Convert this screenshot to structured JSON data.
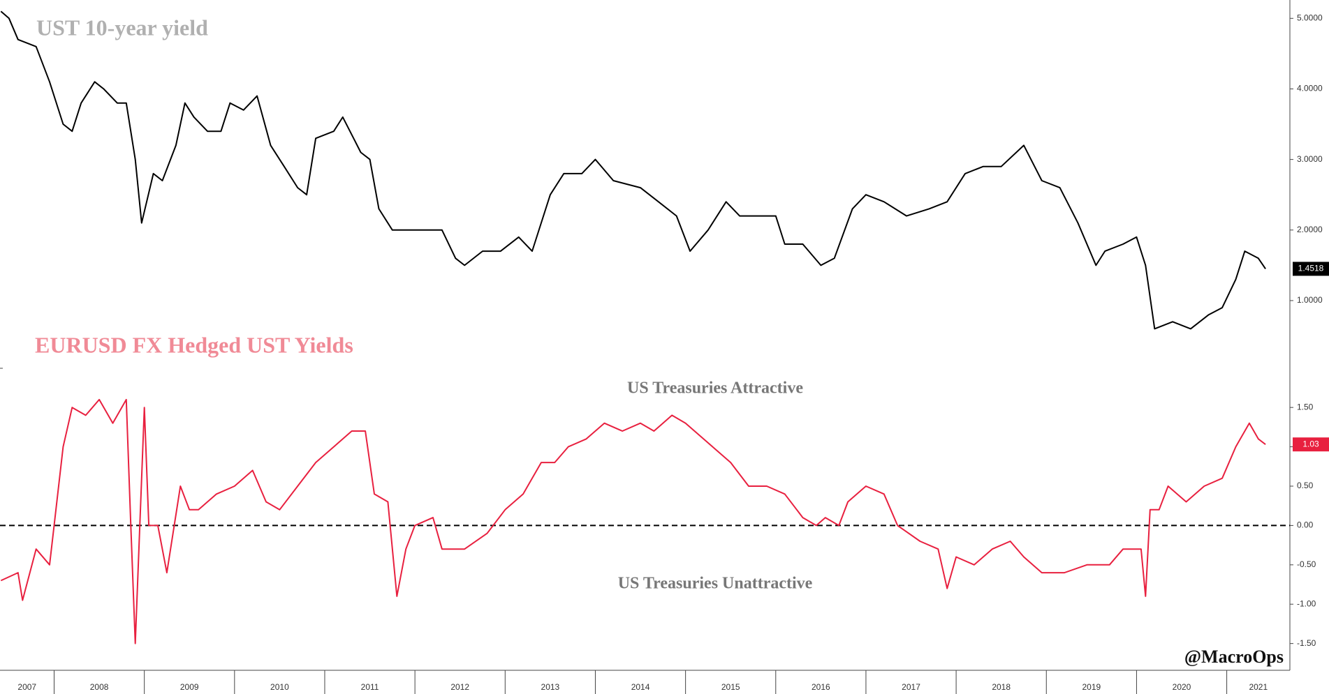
{
  "chart_data": [
    {
      "type": "line",
      "title": "UST 10-year yield",
      "title_color": "#b0b0b0",
      "color": "#000000",
      "xlim": [
        2007.4,
        2021.7
      ],
      "ylim": [
        0.1,
        5.26
      ],
      "yticks": [
        {
          "value": 1,
          "label": "1.0000"
        },
        {
          "value": 2,
          "label": "2.0000"
        },
        {
          "value": 3,
          "label": "3.0000"
        },
        {
          "value": 4,
          "label": "4.0000"
        },
        {
          "value": 5,
          "label": "5.0000"
        }
      ],
      "last_value_label": "1.4518",
      "last_label_color": "#000000",
      "x": [
        2007.41,
        2007.5,
        2007.6,
        2007.8,
        2007.95,
        2008.1,
        2008.2,
        2008.3,
        2008.45,
        2008.55,
        2008.7,
        2008.8,
        2008.9,
        2008.97,
        2009.1,
        2009.2,
        2009.35,
        2009.45,
        2009.55,
        2009.7,
        2009.85,
        2009.95,
        2010.1,
        2010.25,
        2010.4,
        2010.55,
        2010.7,
        2010.8,
        2010.9,
        2011.1,
        2011.2,
        2011.4,
        2011.5,
        2011.6,
        2011.75,
        2011.9,
        2012.1,
        2012.3,
        2012.45,
        2012.55,
        2012.75,
        2012.95,
        2013.15,
        2013.3,
        2013.5,
        2013.65,
        2013.85,
        2014.0,
        2014.2,
        2014.5,
        2014.7,
        2014.9,
        2015.05,
        2015.25,
        2015.45,
        2015.6,
        2015.8,
        2016.0,
        2016.1,
        2016.3,
        2016.5,
        2016.65,
        2016.85,
        2017.0,
        2017.2,
        2017.45,
        2017.7,
        2017.9,
        2018.1,
        2018.3,
        2018.5,
        2018.75,
        2018.95,
        2019.15,
        2019.35,
        2019.55,
        2019.65,
        2019.85,
        2020.0,
        2020.1,
        2020.2,
        2020.4,
        2020.6,
        2020.8,
        2020.95,
        2021.1,
        2021.2,
        2021.35,
        2021.43
      ],
      "values": [
        5.1,
        5.0,
        4.7,
        4.6,
        4.1,
        3.5,
        3.4,
        3.8,
        4.1,
        4.0,
        3.8,
        3.8,
        3.0,
        2.1,
        2.8,
        2.7,
        3.2,
        3.8,
        3.6,
        3.4,
        3.4,
        3.8,
        3.7,
        3.9,
        3.2,
        2.9,
        2.6,
        2.5,
        3.3,
        3.4,
        3.6,
        3.1,
        3.0,
        2.3,
        2.0,
        2.0,
        2.0,
        2.0,
        1.6,
        1.5,
        1.7,
        1.7,
        1.9,
        1.7,
        2.5,
        2.8,
        2.8,
        3.0,
        2.7,
        2.6,
        2.4,
        2.2,
        1.7,
        2.0,
        2.4,
        2.2,
        2.2,
        2.2,
        1.8,
        1.8,
        1.5,
        1.6,
        2.3,
        2.5,
        2.4,
        2.2,
        2.3,
        2.4,
        2.8,
        2.9,
        2.9,
        3.2,
        2.7,
        2.6,
        2.1,
        1.5,
        1.7,
        1.8,
        1.9,
        1.5,
        0.6,
        0.7,
        0.6,
        0.8,
        0.9,
        1.3,
        1.7,
        1.6,
        1.45
      ]
    },
    {
      "type": "line",
      "title": "EURUSD FX Hedged UST Yields",
      "title_color": "#f08a96",
      "color": "#e8203f",
      "xlim": [
        2007.4,
        2021.7
      ],
      "ylim": [
        -1.84,
        1.98
      ],
      "yticks": [
        {
          "value": -1.5,
          "label": "-1.50"
        },
        {
          "value": -1,
          "label": "-1.00"
        },
        {
          "value": -0.5,
          "label": "-0.50"
        },
        {
          "value": 0,
          "label": "0.00"
        },
        {
          "value": 0.5,
          "label": "0.50"
        },
        {
          "value": 1,
          "label": "1.00"
        },
        {
          "value": 1.5,
          "label": "1.50"
        }
      ],
      "reference_line": 0,
      "annotations": [
        "US Treasuries Attractive",
        "US Treasuries Unattractive"
      ],
      "source": "@MacroOps",
      "last_value_label": "1.03",
      "last_label_color": "#e8203f",
      "xticks": [
        2007,
        2008,
        2009,
        2010,
        2011,
        2012,
        2013,
        2014,
        2015,
        2016,
        2017,
        2018,
        2019,
        2020,
        2021
      ],
      "x": [
        2007.41,
        2007.6,
        2007.65,
        2007.8,
        2007.95,
        2008.0,
        2008.1,
        2008.2,
        2008.35,
        2008.5,
        2008.65,
        2008.8,
        2008.85,
        2008.9,
        2008.95,
        2009.0,
        2009.05,
        2009.15,
        2009.25,
        2009.4,
        2009.5,
        2009.6,
        2009.8,
        2010.0,
        2010.2,
        2010.35,
        2010.5,
        2010.7,
        2010.9,
        2011.1,
        2011.3,
        2011.45,
        2011.55,
        2011.7,
        2011.8,
        2011.9,
        2012.0,
        2012.2,
        2012.3,
        2012.55,
        2012.8,
        2013.0,
        2013.2,
        2013.4,
        2013.55,
        2013.7,
        2013.9,
        2014.1,
        2014.3,
        2014.5,
        2014.65,
        2014.75,
        2014.85,
        2015.0,
        2015.1,
        2015.3,
        2015.5,
        2015.7,
        2015.9,
        2016.1,
        2016.3,
        2016.45,
        2016.55,
        2016.7,
        2016.8,
        2017.0,
        2017.2,
        2017.35,
        2017.6,
        2017.8,
        2017.9,
        2018.0,
        2018.2,
        2018.4,
        2018.6,
        2018.75,
        2018.95,
        2019.2,
        2019.45,
        2019.7,
        2019.85,
        2020.05,
        2020.1,
        2020.15,
        2020.25,
        2020.35,
        2020.55,
        2020.75,
        2020.95,
        2021.1,
        2021.25,
        2021.35,
        2021.43
      ],
      "values": [
        -0.7,
        -0.6,
        -0.95,
        -0.3,
        -0.5,
        0.0,
        1.0,
        1.5,
        1.4,
        1.6,
        1.3,
        1.6,
        0.0,
        -1.5,
        0.0,
        1.5,
        0.0,
        0.0,
        -0.6,
        0.5,
        0.2,
        0.2,
        0.4,
        0.5,
        0.7,
        0.3,
        0.2,
        0.5,
        0.8,
        1.0,
        1.2,
        1.2,
        0.4,
        0.3,
        -0.9,
        -0.3,
        0.0,
        0.1,
        -0.3,
        -0.3,
        -0.1,
        0.2,
        0.4,
        0.8,
        0.8,
        1.0,
        1.1,
        1.3,
        1.2,
        1.3,
        1.2,
        1.3,
        1.4,
        1.3,
        1.2,
        1.0,
        0.8,
        0.5,
        0.5,
        0.4,
        0.1,
        0.0,
        0.1,
        0.0,
        0.3,
        0.5,
        0.4,
        0.0,
        -0.2,
        -0.3,
        -0.8,
        -0.4,
        -0.5,
        -0.3,
        -0.2,
        -0.4,
        -0.6,
        -0.6,
        -0.5,
        -0.5,
        -0.3,
        -0.3,
        -0.9,
        0.2,
        0.2,
        0.5,
        0.3,
        0.5,
        0.6,
        1.0,
        1.3,
        1.1,
        1.03
      ]
    }
  ]
}
